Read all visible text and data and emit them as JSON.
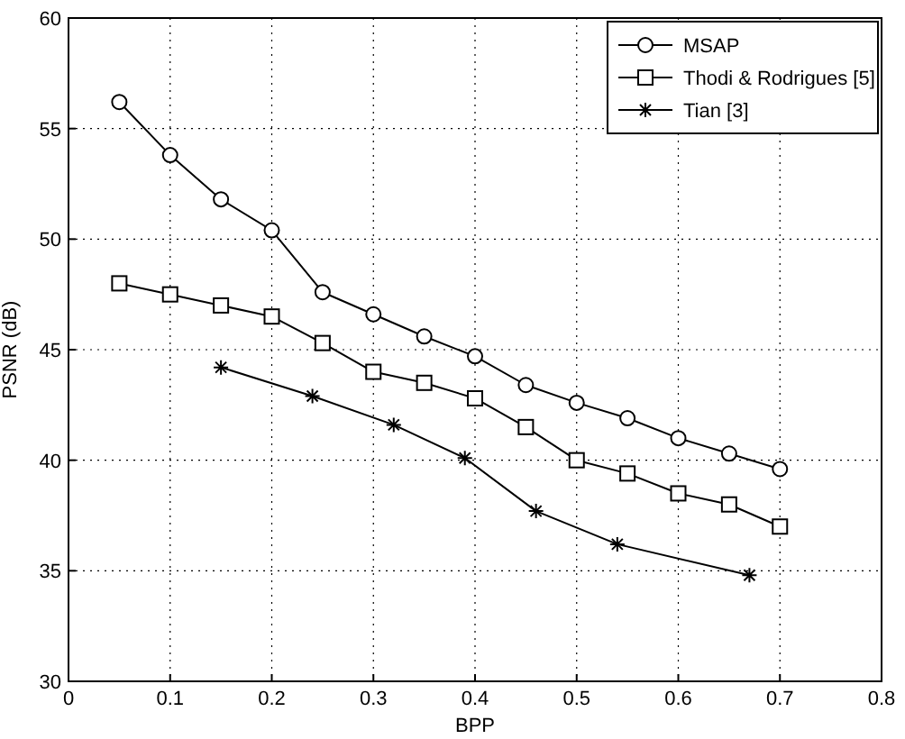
{
  "chart_data": {
    "type": "line",
    "xlabel": "BPP",
    "ylabel": "PSNR (dB)",
    "xlim": [
      0,
      0.8
    ],
    "ylim": [
      30,
      60
    ],
    "xticks": [
      0,
      0.1,
      0.2,
      0.3,
      0.4,
      0.5,
      0.6,
      0.7,
      0.8
    ],
    "yticks": [
      30,
      35,
      40,
      45,
      50,
      55,
      60
    ],
    "grid": true,
    "legend": "top right",
    "line_style": "solid",
    "series": [
      {
        "name": "MSAP",
        "color": "#000000",
        "marker": "circle",
        "x": [
          0.05,
          0.1,
          0.15,
          0.2,
          0.25,
          0.3,
          0.35,
          0.4,
          0.45,
          0.5,
          0.55,
          0.6,
          0.65,
          0.7
        ],
        "values": [
          56.2,
          53.8,
          51.8,
          50.4,
          47.6,
          46.6,
          45.6,
          44.7,
          43.4,
          42.6,
          41.9,
          41.0,
          40.3,
          39.6
        ]
      },
      {
        "name": "Thodi & Rodrigues [5]",
        "color": "#000000",
        "marker": "square",
        "x": [
          0.05,
          0.1,
          0.15,
          0.2,
          0.25,
          0.3,
          0.35,
          0.4,
          0.45,
          0.5,
          0.55,
          0.6,
          0.65,
          0.7
        ],
        "values": [
          48.0,
          47.5,
          47.0,
          46.5,
          45.3,
          44.0,
          43.5,
          42.8,
          41.5,
          40.0,
          39.4,
          38.5,
          38.0,
          37.0
        ]
      },
      {
        "name": "Tian [3]",
        "color": "#000000",
        "marker": "cross",
        "x": [
          0.15,
          0.24,
          0.32,
          0.39,
          0.46,
          0.54,
          0.67
        ],
        "values": [
          44.2,
          42.9,
          41.6,
          40.1,
          37.7,
          36.2,
          34.8
        ]
      }
    ]
  }
}
